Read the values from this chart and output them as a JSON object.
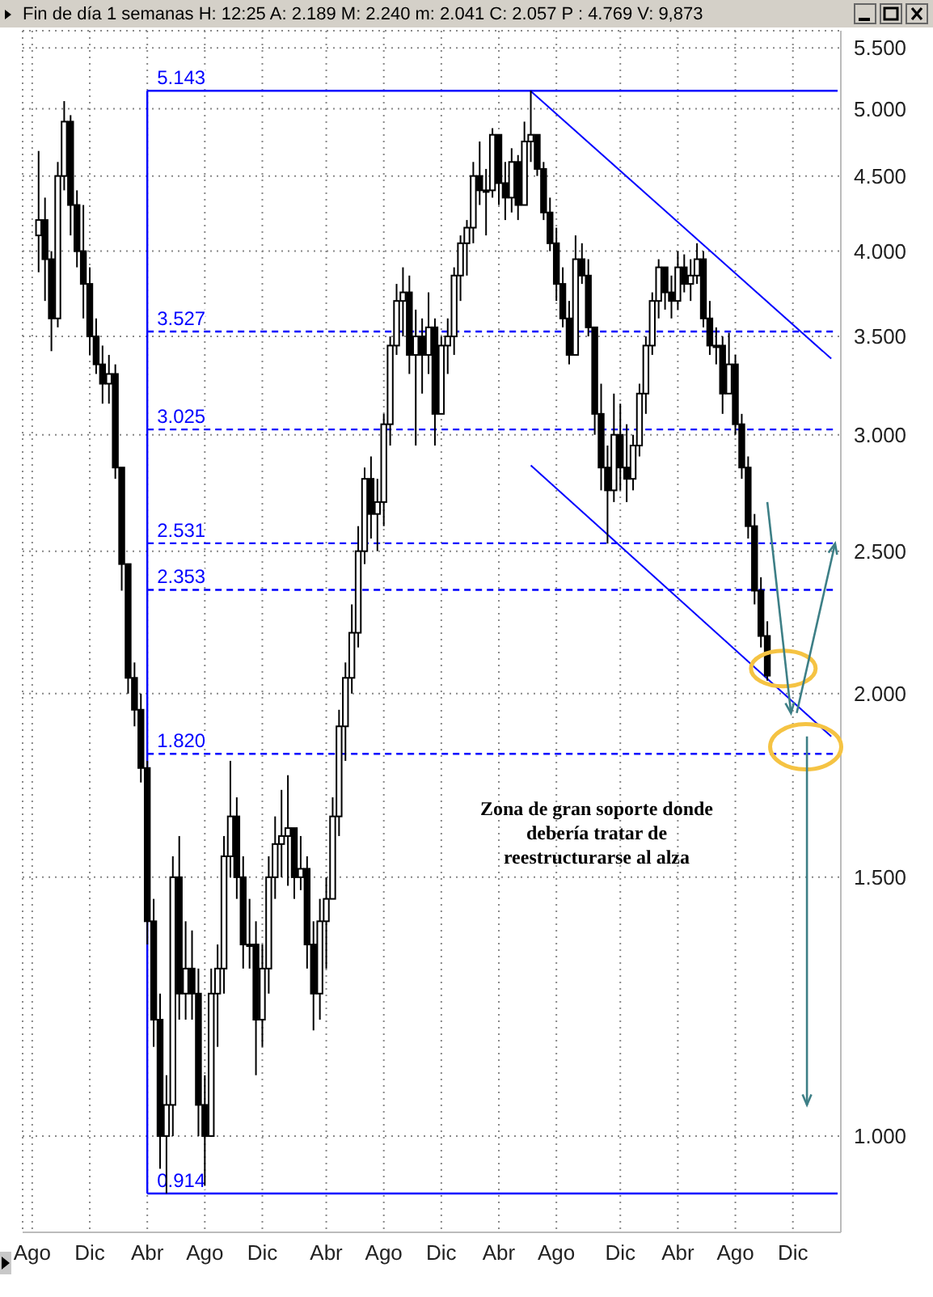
{
  "chart_data": {
    "type": "candlestick",
    "title": "Fin de día 1 semanas  H: 12:25  A: 2.189  M: 2.240  m: 2.041  C: 2.057  P : 4.769  V: 9,873",
    "log": "y",
    "grid": true,
    "categories": [
      null,
      "Ago",
      null,
      null,
      null,
      null,
      null,
      null,
      null,
      null,
      "Dic",
      null,
      null,
      null,
      null,
      null,
      null,
      null,
      null,
      "Abr",
      null,
      null,
      null,
      null,
      null,
      null,
      null,
      null,
      "Ago",
      null,
      null,
      null,
      null,
      null,
      null,
      null,
      null,
      "Dic",
      null,
      null,
      null,
      null,
      null,
      null,
      null,
      null,
      null,
      "Abr",
      null,
      null,
      null,
      null,
      null,
      null,
      null,
      null,
      "Ago",
      null,
      null,
      null,
      null,
      null,
      null,
      null,
      null,
      "Dic",
      null,
      null,
      null,
      null,
      null,
      null,
      null,
      null,
      "Abr",
      null,
      null,
      null,
      null,
      null,
      null,
      null,
      null,
      "Ago",
      null,
      null,
      null,
      null,
      null,
      null,
      null,
      null,
      null,
      "Dic",
      null,
      null,
      null,
      null,
      null,
      null,
      null,
      null,
      "Abr",
      null,
      null,
      null,
      null,
      null,
      null,
      null,
      null,
      "Ago",
      null,
      null,
      null,
      null,
      null,
      null,
      null,
      null,
      "Dic",
      null,
      null,
      null,
      null,
      null,
      null,
      null
    ],
    "ylim": [
      0.86,
      5.65
    ],
    "yticks": [
      {
        "value": 1,
        "label": "1.000"
      },
      {
        "value": 1.5,
        "label": "1.500"
      },
      {
        "value": 2,
        "label": "2.000"
      },
      {
        "value": 2.5,
        "label": "2.500"
      },
      {
        "value": 3,
        "label": "3.000"
      },
      {
        "value": 3.5,
        "label": "3.500"
      },
      {
        "value": 4,
        "label": "4.000"
      },
      {
        "value": 4.5,
        "label": "4.500"
      },
      {
        "value": 5,
        "label": "5.000"
      },
      {
        "value": 5.5,
        "label": "5.500"
      }
    ],
    "series": [
      {
        "color": "#000000",
        "ohlc": [
          null,
          null,
          [
            4.1,
            4.68,
            3.87,
            4.2
          ],
          [
            4.2,
            4.35,
            3.7,
            3.95
          ],
          [
            3.95,
            4.0,
            3.42,
            3.6
          ],
          [
            3.6,
            4.6,
            3.55,
            4.5
          ],
          [
            4.5,
            5.06,
            4.4,
            4.9
          ],
          [
            4.9,
            4.95,
            4.1,
            4.3
          ],
          [
            4.3,
            4.4,
            3.9,
            4.0
          ],
          [
            4.0,
            4.3,
            3.6,
            3.8
          ],
          [
            3.8,
            3.9,
            3.4,
            3.5
          ],
          [
            3.5,
            3.6,
            3.3,
            3.35
          ],
          [
            3.35,
            3.45,
            3.15,
            3.25
          ],
          [
            3.25,
            3.4,
            3.15,
            3.3
          ],
          [
            3.3,
            3.35,
            2.8,
            2.85
          ],
          [
            2.85,
            2.85,
            2.35,
            2.45
          ],
          [
            2.45,
            2.45,
            2.0,
            2.05
          ],
          [
            2.05,
            2.1,
            1.9,
            1.95
          ],
          [
            1.95,
            2.0,
            1.74,
            1.78
          ],
          [
            1.78,
            1.8,
            1.35,
            1.4
          ],
          [
            1.4,
            1.45,
            1.15,
            1.2
          ],
          [
            1.2,
            1.25,
            0.95,
            1.0
          ],
          [
            1.0,
            1.1,
            0.914,
            1.05
          ],
          [
            1.05,
            1.55,
            1.0,
            1.5
          ],
          [
            1.5,
            1.6,
            1.2,
            1.25
          ],
          [
            1.25,
            1.4,
            1.2,
            1.3
          ],
          [
            1.3,
            1.38,
            1.2,
            1.25
          ],
          [
            1.25,
            1.3,
            1.0,
            1.05
          ],
          [
            1.05,
            1.1,
            0.925,
            1.0
          ],
          [
            1.0,
            1.3,
            1.0,
            1.25
          ],
          [
            1.25,
            1.35,
            1.15,
            1.3
          ],
          [
            1.3,
            1.6,
            1.25,
            1.55
          ],
          [
            1.55,
            1.8,
            1.5,
            1.65
          ],
          [
            1.65,
            1.7,
            1.45,
            1.5
          ],
          [
            1.5,
            1.55,
            1.3,
            1.35
          ],
          [
            1.35,
            1.45,
            1.3,
            1.35
          ],
          [
            1.35,
            1.4,
            1.1,
            1.2
          ],
          [
            1.2,
            1.35,
            1.15,
            1.3
          ],
          [
            1.3,
            1.55,
            1.25,
            1.5
          ],
          [
            1.5,
            1.65,
            1.45,
            1.58
          ],
          [
            1.58,
            1.72,
            1.5,
            1.6
          ],
          [
            1.6,
            1.76,
            1.48,
            1.62
          ],
          [
            1.62,
            1.62,
            1.45,
            1.5
          ],
          [
            1.5,
            1.6,
            1.47,
            1.52
          ],
          [
            1.52,
            1.55,
            1.3,
            1.35
          ],
          [
            1.35,
            1.4,
            1.18,
            1.25
          ],
          [
            1.25,
            1.45,
            1.2,
            1.4
          ],
          [
            1.4,
            1.5,
            1.3,
            1.45
          ],
          [
            1.45,
            1.7,
            1.45,
            1.65
          ],
          [
            1.65,
            1.95,
            1.6,
            1.9
          ],
          [
            1.9,
            2.1,
            1.8,
            2.05
          ],
          [
            2.05,
            2.3,
            2.0,
            2.2
          ],
          [
            2.2,
            2.6,
            2.15,
            2.5
          ],
          [
            2.5,
            2.85,
            2.45,
            2.8
          ],
          [
            2.8,
            2.9,
            2.55,
            2.65
          ],
          [
            2.65,
            2.8,
            2.5,
            2.7
          ],
          [
            2.7,
            3.1,
            2.6,
            3.05
          ],
          [
            3.05,
            3.5,
            2.95,
            3.45
          ],
          [
            3.45,
            3.8,
            3.4,
            3.7
          ],
          [
            3.7,
            3.9,
            3.5,
            3.75
          ],
          [
            3.75,
            3.85,
            3.3,
            3.4
          ],
          [
            3.4,
            3.65,
            2.95,
            3.5
          ],
          [
            3.5,
            3.6,
            3.2,
            3.4
          ],
          [
            3.4,
            3.75,
            3.3,
            3.55
          ],
          [
            3.55,
            3.6,
            2.95,
            3.1
          ],
          [
            3.1,
            3.5,
            3.1,
            3.45
          ],
          [
            3.45,
            3.6,
            3.3,
            3.5
          ],
          [
            3.5,
            3.9,
            3.4,
            3.85
          ],
          [
            3.85,
            4.1,
            3.7,
            4.05
          ],
          [
            4.05,
            4.2,
            3.85,
            4.15
          ],
          [
            4.15,
            4.6,
            4.05,
            4.5
          ],
          [
            4.5,
            4.75,
            4.3,
            4.4
          ],
          [
            4.4,
            4.55,
            4.1,
            4.4
          ],
          [
            4.4,
            4.85,
            4.35,
            4.8
          ],
          [
            4.8,
            4.8,
            4.3,
            4.45
          ],
          [
            4.45,
            4.6,
            4.2,
            4.35
          ],
          [
            4.35,
            4.7,
            4.25,
            4.6
          ],
          [
            4.6,
            4.65,
            4.2,
            4.3
          ],
          [
            4.3,
            4.9,
            4.3,
            4.75
          ],
          [
            4.75,
            5.143,
            4.6,
            4.8
          ],
          [
            4.8,
            4.8,
            4.5,
            4.55
          ],
          [
            4.55,
            4.6,
            4.2,
            4.25
          ],
          [
            4.25,
            4.35,
            4.0,
            4.05
          ],
          [
            4.05,
            4.15,
            3.7,
            3.8
          ],
          [
            3.8,
            3.9,
            3.55,
            3.6
          ],
          [
            3.6,
            3.7,
            3.35,
            3.4
          ],
          [
            3.4,
            4.1,
            3.4,
            3.95
          ],
          [
            3.95,
            4.05,
            3.8,
            3.85
          ],
          [
            3.85,
            3.95,
            3.5,
            3.55
          ],
          [
            3.55,
            3.55,
            3.0,
            3.1
          ],
          [
            3.1,
            3.25,
            2.75,
            2.85
          ],
          [
            2.85,
            2.95,
            2.53,
            2.75
          ],
          [
            2.75,
            3.2,
            2.7,
            3.0
          ],
          [
            3.0,
            3.15,
            2.75,
            2.85
          ],
          [
            2.85,
            3.05,
            2.7,
            2.8
          ],
          [
            2.8,
            3.0,
            2.75,
            2.95
          ],
          [
            2.95,
            3.25,
            2.9,
            3.2
          ],
          [
            3.2,
            3.5,
            3.1,
            3.45
          ],
          [
            3.45,
            3.75,
            3.4,
            3.7
          ],
          [
            3.7,
            3.95,
            3.6,
            3.9
          ],
          [
            3.9,
            3.9,
            3.65,
            3.75
          ],
          [
            3.75,
            3.85,
            3.6,
            3.7
          ],
          [
            3.7,
            4.0,
            3.65,
            3.9
          ],
          [
            3.9,
            3.98,
            3.75,
            3.8
          ],
          [
            3.8,
            3.95,
            3.7,
            3.85
          ],
          [
            3.85,
            4.05,
            3.8,
            3.95
          ],
          [
            3.95,
            4.0,
            3.55,
            3.6
          ],
          [
            3.6,
            3.7,
            3.4,
            3.45
          ],
          [
            3.45,
            3.55,
            3.35,
            3.45
          ],
          [
            3.45,
            3.5,
            3.1,
            3.2
          ],
          [
            3.2,
            3.52,
            3.2,
            3.35
          ],
          [
            3.35,
            3.4,
            3.0,
            3.05
          ],
          [
            3.05,
            3.1,
            2.8,
            2.85
          ],
          [
            2.85,
            2.9,
            2.55,
            2.6
          ],
          [
            2.6,
            2.65,
            2.3,
            2.35
          ],
          [
            2.35,
            2.4,
            2.15,
            2.189
          ],
          [
            2.189,
            2.24,
            2.041,
            2.057
          ],
          null,
          null,
          null,
          null,
          null,
          null,
          null,
          null,
          null,
          null,
          null
        ]
      },
      {
        "type": "line",
        "color": "#0000ff",
        "values": [
          null,
          null,
          null,
          null,
          null,
          null,
          null,
          null,
          null,
          null,
          null,
          null,
          null,
          null,
          null,
          null,
          null,
          null,
          null,
          null,
          null,
          null,
          null,
          null,
          null,
          null,
          null,
          null,
          null,
          null,
          null,
          null,
          null,
          null,
          null,
          null,
          null,
          null,
          null,
          null,
          null,
          null,
          null,
          null,
          null,
          null,
          null,
          null,
          null,
          null,
          null,
          null,
          null,
          null,
          null,
          null,
          null,
          null,
          null,
          null,
          null,
          null,
          null,
          null,
          null,
          null,
          null,
          null,
          null,
          null,
          null,
          null,
          null,
          null,
          null,
          null,
          null,
          null,
          null,
          5.14,
          null,
          null,
          null,
          null,
          null,
          null,
          null,
          null,
          null,
          null,
          null,
          null,
          null,
          null,
          null,
          null,
          null,
          null,
          null,
          null,
          null,
          null,
          null,
          null,
          null,
          null,
          null,
          null,
          null,
          null,
          null,
          null,
          null,
          null,
          null,
          null,
          null,
          null,
          null,
          null,
          null,
          null,
          null,
          null,
          null,
          null,
          3.38,
          null
        ]
      },
      {
        "type": "line",
        "color": "#0000ff",
        "values": [
          null,
          null,
          null,
          null,
          null,
          null,
          null,
          null,
          null,
          null,
          null,
          null,
          null,
          null,
          null,
          null,
          null,
          null,
          null,
          null,
          null,
          null,
          null,
          null,
          null,
          null,
          null,
          null,
          null,
          null,
          null,
          null,
          null,
          null,
          null,
          null,
          null,
          null,
          null,
          null,
          null,
          null,
          null,
          null,
          null,
          null,
          null,
          null,
          null,
          null,
          null,
          null,
          null,
          null,
          null,
          null,
          null,
          null,
          null,
          null,
          null,
          null,
          null,
          null,
          null,
          null,
          null,
          null,
          null,
          null,
          null,
          null,
          null,
          null,
          null,
          null,
          null,
          null,
          null,
          2.86,
          null,
          null,
          null,
          null,
          null,
          null,
          null,
          null,
          null,
          null,
          null,
          null,
          null,
          null,
          null,
          null,
          null,
          null,
          null,
          null,
          null,
          null,
          null,
          null,
          null,
          null,
          null,
          null,
          null,
          null,
          null,
          null,
          null,
          null,
          null,
          null,
          null,
          null,
          null,
          null,
          null,
          null,
          null,
          null,
          null,
          null,
          1.87,
          null
        ]
      }
    ],
    "ref_lines": [
      {
        "axis": "x",
        "value": "Abr",
        "color": "#0000ff",
        "line_style": "solid"
      },
      {
        "axis": "y",
        "value": 5.143,
        "label": "5.143",
        "color": "#0000ff",
        "line_style": "solid"
      },
      {
        "axis": "y",
        "value": 3.527,
        "label": "3.527",
        "color": "#0000ff",
        "line_style": "dashed"
      },
      {
        "axis": "y",
        "value": 3.025,
        "label": "3.025",
        "color": "#0000ff",
        "line_style": "dashed"
      },
      {
        "axis": "y",
        "value": 2.531,
        "label": "2.531",
        "color": "#0000ff",
        "line_style": "dashed"
      },
      {
        "axis": "y",
        "value": 2.353,
        "label": "2.353",
        "color": "#0000ff",
        "line_style": "dashed"
      },
      {
        "axis": "y",
        "value": 1.82,
        "label": "1.820",
        "color": "#0000ff",
        "line_style": "dashed"
      },
      {
        "axis": "y",
        "value": 0.914,
        "label": "0.914",
        "color": "#0000ff",
        "line_style": "solid"
      }
    ],
    "annotations": [
      "Zona de gran soporte donde debería tratar de reestructurarse al alza"
    ]
  }
}
